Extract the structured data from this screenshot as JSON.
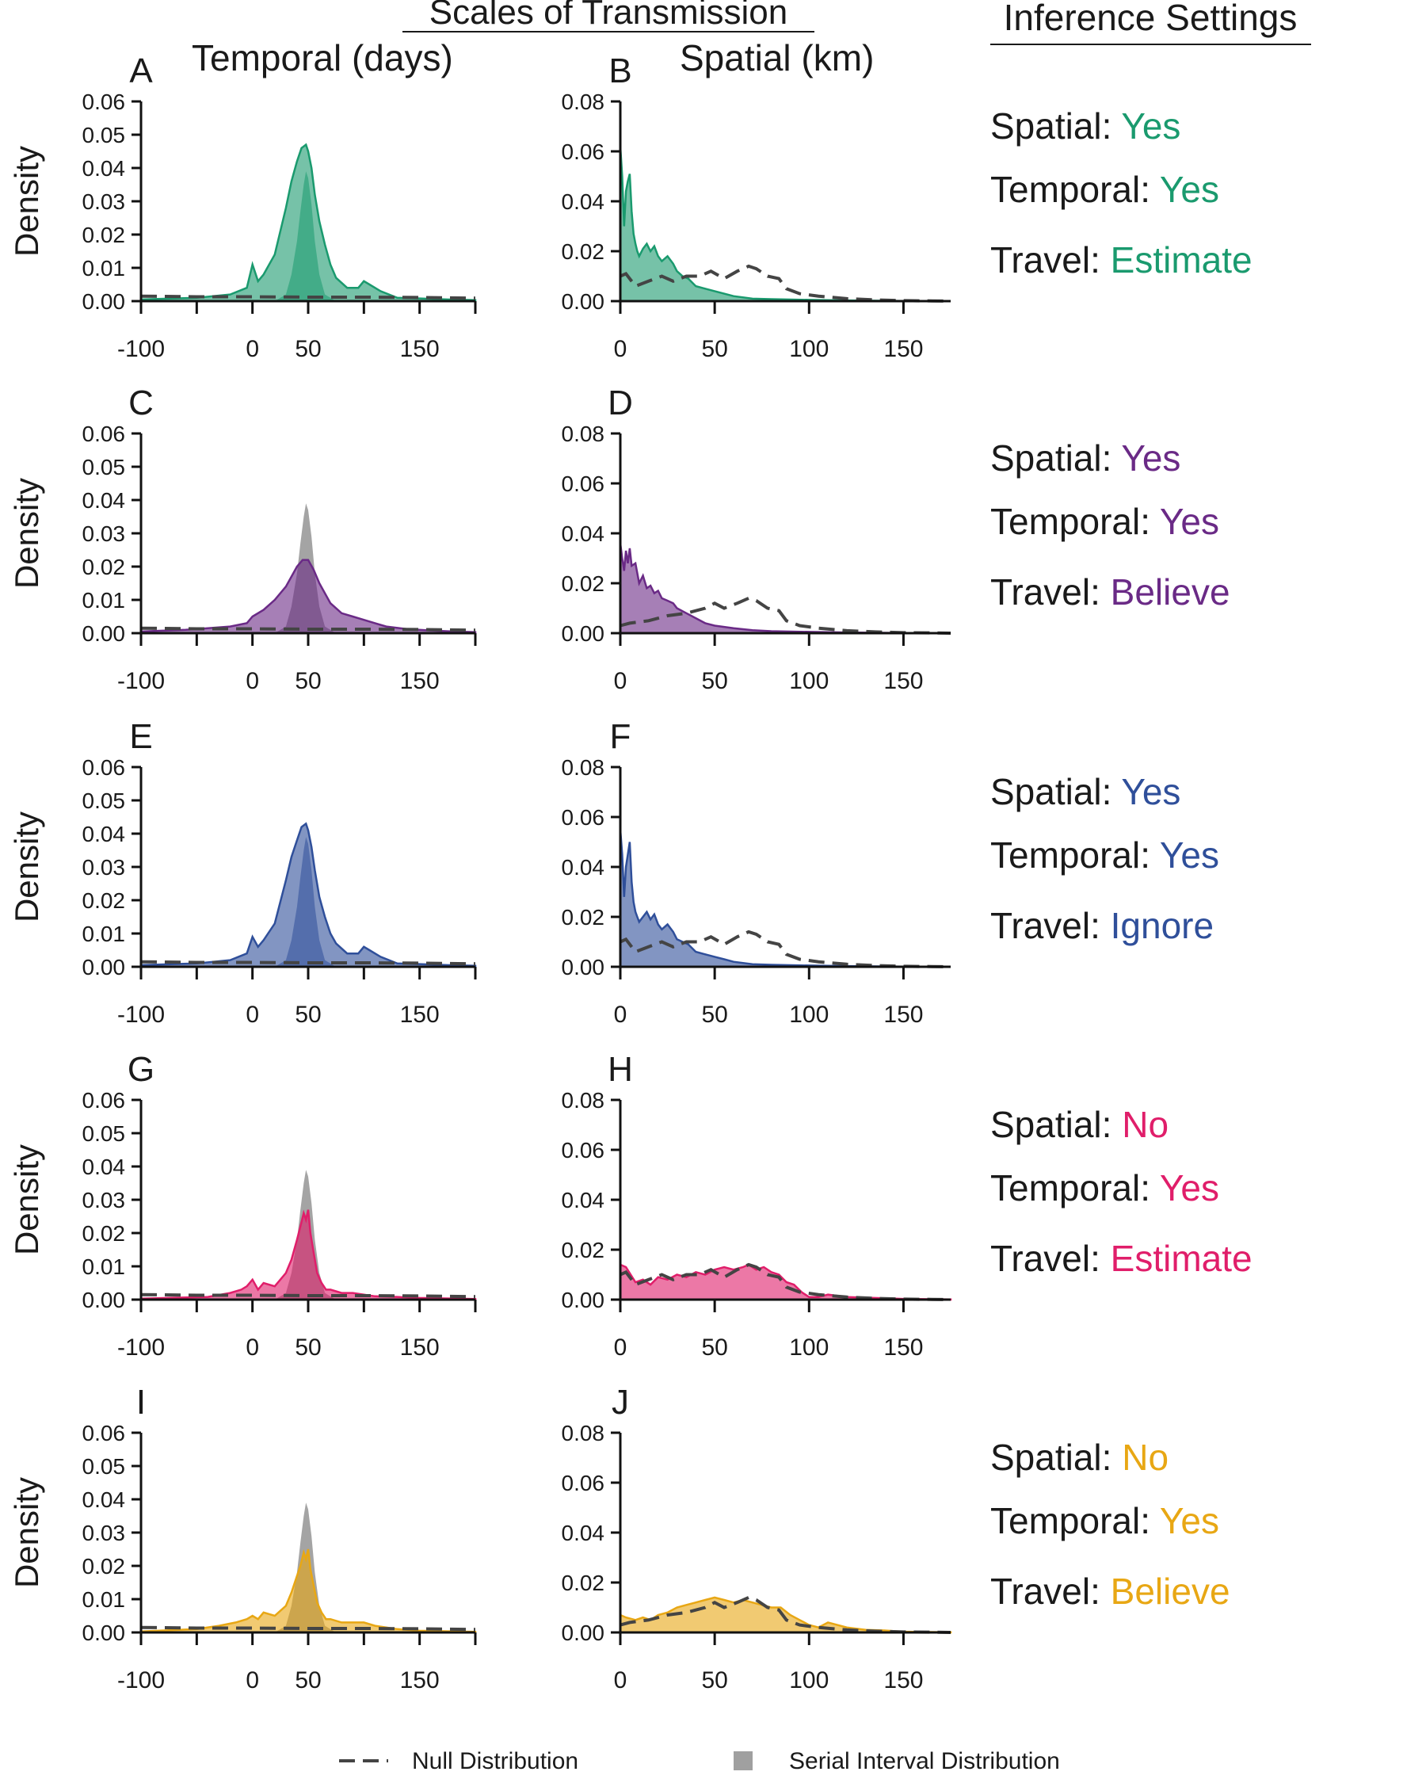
{
  "header": {
    "main_title": "Scales of Transmission",
    "settings_title": "Inference Settings",
    "temporal_heading": "Temporal (days)",
    "spatial_heading": "Spatial (km)"
  },
  "ylabel": "Density",
  "legend": {
    "null_label": "Null Distribution",
    "serial_label": "Serial Interval Distribution"
  },
  "colors": {
    "green": "#1a9a6e",
    "purple": "#6a2a86",
    "blue": "#2f4f9a",
    "pink": "#e01e6a",
    "yellow": "#e8a714",
    "serial": "#8f8f8f",
    "null_line": "#444444"
  },
  "settings": [
    {
      "spatial_key": "Spatial:",
      "spatial_value": "Yes",
      "temporal_key": "Temporal:",
      "temporal_value": "Yes",
      "travel_key": "Travel:",
      "travel_value": "Estimate"
    },
    {
      "spatial_key": "Spatial:",
      "spatial_value": "Yes",
      "temporal_key": "Temporal:",
      "temporal_value": "Yes",
      "travel_key": "Travel:",
      "travel_value": "Believe"
    },
    {
      "spatial_key": "Spatial:",
      "spatial_value": "Yes",
      "temporal_key": "Temporal:",
      "temporal_value": "Yes",
      "travel_key": "Travel:",
      "travel_value": "Ignore"
    },
    {
      "spatial_key": "Spatial:",
      "spatial_value": "No",
      "temporal_key": "Temporal:",
      "temporal_value": "Yes",
      "travel_key": "Travel:",
      "travel_value": "Estimate"
    },
    {
      "spatial_key": "Spatial:",
      "spatial_value": "No",
      "temporal_key": "Temporal:",
      "temporal_value": "Yes",
      "travel_key": "Travel:",
      "travel_value": "Believe"
    }
  ],
  "chart_data": {
    "type": "area",
    "temporal_axis": {
      "xlim": [
        -100,
        200
      ],
      "xticks": [
        -100,
        -50,
        0,
        50,
        100,
        150,
        200
      ],
      "xtick_labels": [
        "-100",
        "",
        "0",
        "50",
        "",
        "150",
        ""
      ],
      "ylim": [
        0,
        0.06
      ],
      "yticks": [
        "0.00",
        "0.01",
        "0.02",
        "0.03",
        "0.04",
        "0.05",
        "0.06"
      ]
    },
    "spatial_axis": {
      "xlim": [
        0,
        175
      ],
      "xticks": [
        0,
        50,
        100,
        150
      ],
      "xtick_labels": [
        "0",
        "50",
        "100",
        "150"
      ],
      "ylim": [
        0,
        0.08
      ],
      "yticks": [
        "0.00",
        "0.02",
        "0.04",
        "0.06",
        "0.08"
      ]
    },
    "serial_interval": {
      "x": [
        20,
        30,
        35,
        40,
        43,
        46,
        48,
        50,
        53,
        56,
        60,
        65,
        75
      ],
      "y": [
        0,
        0.002,
        0.008,
        0.018,
        0.027,
        0.035,
        0.039,
        0.037,
        0.029,
        0.018,
        0.008,
        0.002,
        0
      ]
    },
    "temporal_null": {
      "x": [
        -100,
        -50,
        0,
        50,
        100,
        150,
        200
      ],
      "y": [
        0.0015,
        0.0013,
        0.0013,
        0.0012,
        0.0012,
        0.0011,
        0.0009
      ]
    },
    "spatial_null_a": {
      "x": [
        0,
        3,
        8,
        15,
        22,
        28,
        35,
        42,
        48,
        55,
        62,
        68,
        72,
        78,
        84,
        88,
        95,
        105,
        120,
        135,
        150,
        165,
        175
      ],
      "y": [
        0.01,
        0.011,
        0.006,
        0.008,
        0.01,
        0.008,
        0.01,
        0.01,
        0.012,
        0.009,
        0.012,
        0.014,
        0.013,
        0.01,
        0.009,
        0.005,
        0.003,
        0.002,
        0.001,
        0.0005,
        0.0002,
        0.0001,
        0
      ]
    },
    "spatial_null_b": {
      "x": [
        0,
        5,
        15,
        25,
        35,
        45,
        50,
        55,
        62,
        68,
        72,
        78,
        84,
        88,
        95,
        105,
        120,
        135,
        150,
        165,
        175
      ],
      "y": [
        0.003,
        0.004,
        0.005,
        0.007,
        0.008,
        0.01,
        0.012,
        0.01,
        0.012,
        0.014,
        0.013,
        0.01,
        0.009,
        0.005,
        0.003,
        0.002,
        0.001,
        0.0005,
        0.0002,
        0.0001,
        0
      ]
    },
    "panels": [
      {
        "temporal_letter": "A",
        "spatial_letter": "B",
        "color": "#1a9a6e",
        "temporal": {
          "x": [
            -100,
            -50,
            -20,
            -5,
            0,
            5,
            10,
            20,
            30,
            35,
            40,
            44,
            48,
            50,
            53,
            56,
            60,
            65,
            70,
            75,
            85,
            95,
            100,
            105,
            115,
            130,
            150,
            175,
            200
          ],
          "y": [
            0.0005,
            0.001,
            0.002,
            0.004,
            0.011,
            0.006,
            0.008,
            0.014,
            0.028,
            0.036,
            0.042,
            0.046,
            0.047,
            0.045,
            0.04,
            0.032,
            0.024,
            0.017,
            0.011,
            0.007,
            0.004,
            0.004,
            0.006,
            0.005,
            0.003,
            0.001,
            0.0008,
            0.0005,
            0.0003
          ]
        },
        "spatial": {
          "x": [
            0,
            1,
            2,
            3,
            4,
            5,
            6,
            7,
            8,
            9,
            10,
            12,
            14,
            16,
            18,
            20,
            22,
            25,
            28,
            30,
            33,
            36,
            40,
            45,
            50,
            55,
            60,
            70,
            80,
            100,
            120,
            150,
            175
          ],
          "y": [
            0.062,
            0.05,
            0.03,
            0.044,
            0.048,
            0.051,
            0.036,
            0.027,
            0.023,
            0.02,
            0.018,
            0.021,
            0.023,
            0.02,
            0.022,
            0.018,
            0.016,
            0.018,
            0.015,
            0.012,
            0.01,
            0.009,
            0.006,
            0.005,
            0.004,
            0.003,
            0.002,
            0.001,
            0.0008,
            0.0005,
            0.0003,
            0.0001,
            0
          ]
        },
        "serial_shown": false,
        "spatial_null": "a"
      },
      {
        "temporal_letter": "C",
        "spatial_letter": "D",
        "color": "#6a2a86",
        "temporal": {
          "x": [
            -100,
            -60,
            -40,
            -20,
            -5,
            0,
            10,
            20,
            30,
            40,
            45,
            50,
            55,
            60,
            70,
            80,
            90,
            100,
            110,
            120,
            140,
            160,
            180,
            200
          ],
          "y": [
            0.0005,
            0.001,
            0.0015,
            0.002,
            0.003,
            0.005,
            0.007,
            0.01,
            0.014,
            0.02,
            0.022,
            0.022,
            0.019,
            0.015,
            0.009,
            0.006,
            0.005,
            0.004,
            0.003,
            0.002,
            0.0012,
            0.0008,
            0.0005,
            0.0003
          ]
        },
        "spatial": {
          "x": [
            0,
            1,
            2,
            3,
            4,
            5,
            6,
            8,
            10,
            12,
            14,
            16,
            18,
            20,
            22,
            25,
            28,
            30,
            35,
            40,
            45,
            50,
            60,
            70,
            80,
            100,
            120,
            150,
            175
          ],
          "y": [
            0.036,
            0.03,
            0.025,
            0.033,
            0.028,
            0.034,
            0.027,
            0.028,
            0.02,
            0.023,
            0.018,
            0.019,
            0.016,
            0.017,
            0.014,
            0.013,
            0.012,
            0.01,
            0.008,
            0.006,
            0.004,
            0.003,
            0.002,
            0.0012,
            0.0008,
            0.0005,
            0.0003,
            0.0001,
            0
          ]
        },
        "serial_shown": true,
        "spatial_null": "b"
      },
      {
        "temporal_letter": "E",
        "spatial_letter": "F",
        "color": "#2f4f9a",
        "temporal": {
          "x": [
            -100,
            -50,
            -20,
            -5,
            0,
            5,
            10,
            20,
            30,
            35,
            40,
            44,
            48,
            50,
            53,
            56,
            60,
            65,
            70,
            75,
            85,
            95,
            100,
            105,
            115,
            130,
            150,
            175,
            200
          ],
          "y": [
            0.0005,
            0.001,
            0.002,
            0.004,
            0.009,
            0.006,
            0.008,
            0.013,
            0.026,
            0.033,
            0.038,
            0.042,
            0.043,
            0.041,
            0.036,
            0.029,
            0.021,
            0.015,
            0.01,
            0.007,
            0.004,
            0.004,
            0.006,
            0.005,
            0.003,
            0.001,
            0.0008,
            0.0005,
            0.0003
          ]
        },
        "spatial": {
          "x": [
            0,
            1,
            2,
            3,
            4,
            5,
            6,
            7,
            8,
            9,
            10,
            12,
            14,
            16,
            18,
            20,
            22,
            25,
            28,
            30,
            33,
            36,
            40,
            45,
            50,
            55,
            60,
            70,
            80,
            100,
            120,
            150,
            175
          ],
          "y": [
            0.055,
            0.045,
            0.028,
            0.04,
            0.045,
            0.05,
            0.034,
            0.026,
            0.022,
            0.02,
            0.018,
            0.02,
            0.022,
            0.019,
            0.021,
            0.017,
            0.015,
            0.017,
            0.014,
            0.011,
            0.01,
            0.009,
            0.006,
            0.005,
            0.004,
            0.003,
            0.002,
            0.001,
            0.0008,
            0.0005,
            0.0003,
            0.0001,
            0
          ]
        },
        "serial_shown": false,
        "spatial_null": "a"
      },
      {
        "temporal_letter": "G",
        "spatial_letter": "H",
        "color": "#e01e6a",
        "temporal": {
          "x": [
            -100,
            -40,
            -20,
            -10,
            -5,
            0,
            5,
            10,
            20,
            30,
            35,
            40,
            43,
            46,
            48,
            50,
            52,
            55,
            58,
            62,
            66,
            70,
            80,
            90,
            100,
            110,
            130,
            150,
            200
          ],
          "y": [
            0.0003,
            0.0008,
            0.002,
            0.003,
            0.004,
            0.006,
            0.003,
            0.005,
            0.004,
            0.008,
            0.012,
            0.018,
            0.022,
            0.026,
            0.024,
            0.027,
            0.02,
            0.014,
            0.008,
            0.005,
            0.003,
            0.003,
            0.002,
            0.002,
            0.0015,
            0.001,
            0.0008,
            0.0005,
            0.0002
          ]
        },
        "spatial": {
          "x": [
            0,
            3,
            8,
            12,
            16,
            20,
            25,
            30,
            35,
            40,
            45,
            50,
            55,
            60,
            65,
            68,
            72,
            76,
            80,
            84,
            88,
            92,
            96,
            100,
            105,
            110,
            120,
            130,
            150,
            175
          ],
          "y": [
            0.014,
            0.013,
            0.007,
            0.008,
            0.006,
            0.009,
            0.008,
            0.01,
            0.009,
            0.011,
            0.01,
            0.012,
            0.013,
            0.012,
            0.013,
            0.014,
            0.012,
            0.013,
            0.011,
            0.01,
            0.007,
            0.006,
            0.003,
            0.001,
            0.001,
            0.002,
            0.001,
            0.0008,
            0.0003,
            0.0001
          ]
        },
        "serial_shown": true,
        "spatial_null": "a"
      },
      {
        "temporal_letter": "I",
        "spatial_letter": "J",
        "color": "#e8a714",
        "temporal": {
          "x": [
            -100,
            -50,
            -30,
            -15,
            -5,
            0,
            5,
            10,
            20,
            30,
            35,
            40,
            43,
            46,
            48,
            50,
            52,
            55,
            58,
            62,
            66,
            70,
            80,
            90,
            100,
            110,
            130,
            150,
            200
          ],
          "y": [
            0.0003,
            0.001,
            0.002,
            0.003,
            0.004,
            0.005,
            0.004,
            0.006,
            0.005,
            0.008,
            0.012,
            0.017,
            0.02,
            0.024,
            0.022,
            0.025,
            0.019,
            0.014,
            0.009,
            0.006,
            0.004,
            0.004,
            0.003,
            0.003,
            0.003,
            0.002,
            0.001,
            0.0005,
            0.0002
          ]
        },
        "spatial": {
          "x": [
            0,
            3,
            8,
            12,
            16,
            20,
            25,
            30,
            35,
            40,
            45,
            50,
            55,
            60,
            65,
            70,
            75,
            80,
            85,
            90,
            95,
            100,
            105,
            110,
            115,
            120,
            130,
            140,
            150,
            175
          ],
          "y": [
            0.007,
            0.006,
            0.005,
            0.006,
            0.005,
            0.007,
            0.008,
            0.01,
            0.011,
            0.012,
            0.013,
            0.014,
            0.013,
            0.012,
            0.013,
            0.012,
            0.011,
            0.01,
            0.01,
            0.007,
            0.005,
            0.003,
            0.002,
            0.004,
            0.003,
            0.002,
            0.001,
            0.0008,
            0.0003,
            0.0001
          ]
        },
        "serial_shown": true,
        "spatial_null": "b"
      }
    ]
  }
}
